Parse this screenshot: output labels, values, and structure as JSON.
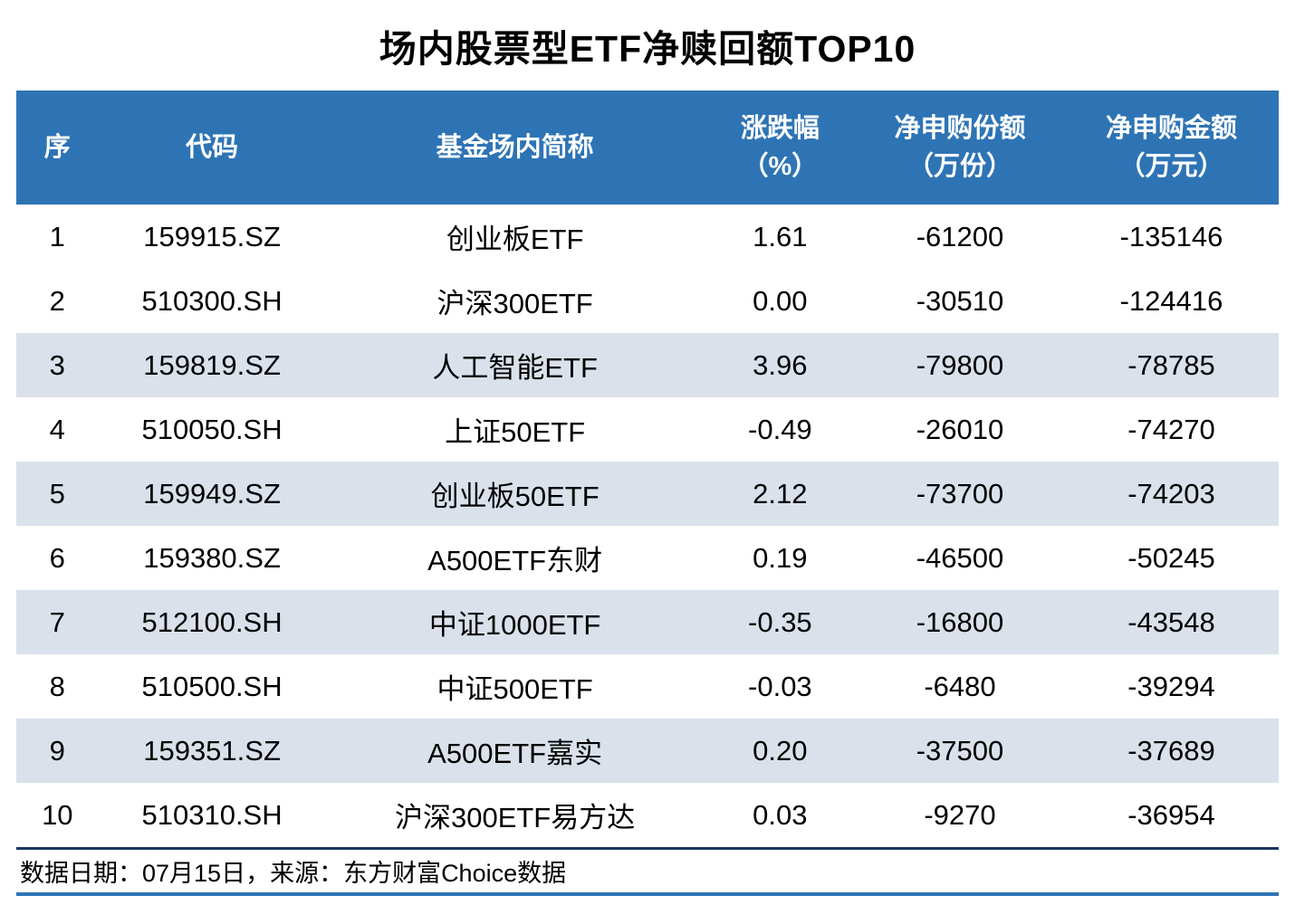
{
  "title": "场内股票型ETF净赎回额TOP10",
  "chart_data": {
    "type": "table",
    "title": "场内股票型ETF净赎回额TOP10",
    "columns": [
      {
        "key": "index",
        "label": "序",
        "sub": ""
      },
      {
        "key": "code",
        "label": "代码",
        "sub": ""
      },
      {
        "key": "fund-name",
        "label": "基金场内简称",
        "sub": ""
      },
      {
        "key": "change-pct",
        "label": "涨跌幅",
        "sub": "（%）"
      },
      {
        "key": "net-subscription-shares",
        "label": "净申购份额",
        "sub": "（万份）"
      },
      {
        "key": "net-subscription-amount",
        "label": "净申购金额",
        "sub": "（万元）"
      }
    ],
    "rows": [
      [
        "1",
        "159915.SZ",
        "创业板ETF",
        "1.61",
        "-61200",
        "-135146"
      ],
      [
        "2",
        "510300.SH",
        "沪深300ETF",
        "0.00",
        "-30510",
        "-124416"
      ],
      [
        "3",
        "159819.SZ",
        "人工智能ETF",
        "3.96",
        "-79800",
        "-78785"
      ],
      [
        "4",
        "510050.SH",
        "上证50ETF",
        "-0.49",
        "-26010",
        "-74270"
      ],
      [
        "5",
        "159949.SZ",
        "创业板50ETF",
        "2.12",
        "-73700",
        "-74203"
      ],
      [
        "6",
        "159380.SZ",
        "A500ETF东财",
        "0.19",
        "-46500",
        "-50245"
      ],
      [
        "7",
        "512100.SH",
        "中证1000ETF",
        "-0.35",
        "-16800",
        "-43548"
      ],
      [
        "8",
        "510500.SH",
        "中证500ETF",
        "-0.03",
        "-6480",
        "-39294"
      ],
      [
        "9",
        "159351.SZ",
        "A500ETF嘉实",
        "0.20",
        "-37500",
        "-37689"
      ],
      [
        "10",
        "510310.SH",
        "沪深300ETF易方达",
        "0.03",
        "-9270",
        "-36954"
      ]
    ]
  },
  "footer": {
    "text": "数据日期：07月15日，来源：东方财富Choice数据"
  },
  "colors": {
    "header_bg": "#2E74B5",
    "band_bg": "#DAE1EB",
    "divider_dark": "#17375E",
    "bottom_line": "#2E74B5",
    "header_text": "#FFFFFF",
    "body_text": "#000000"
  }
}
